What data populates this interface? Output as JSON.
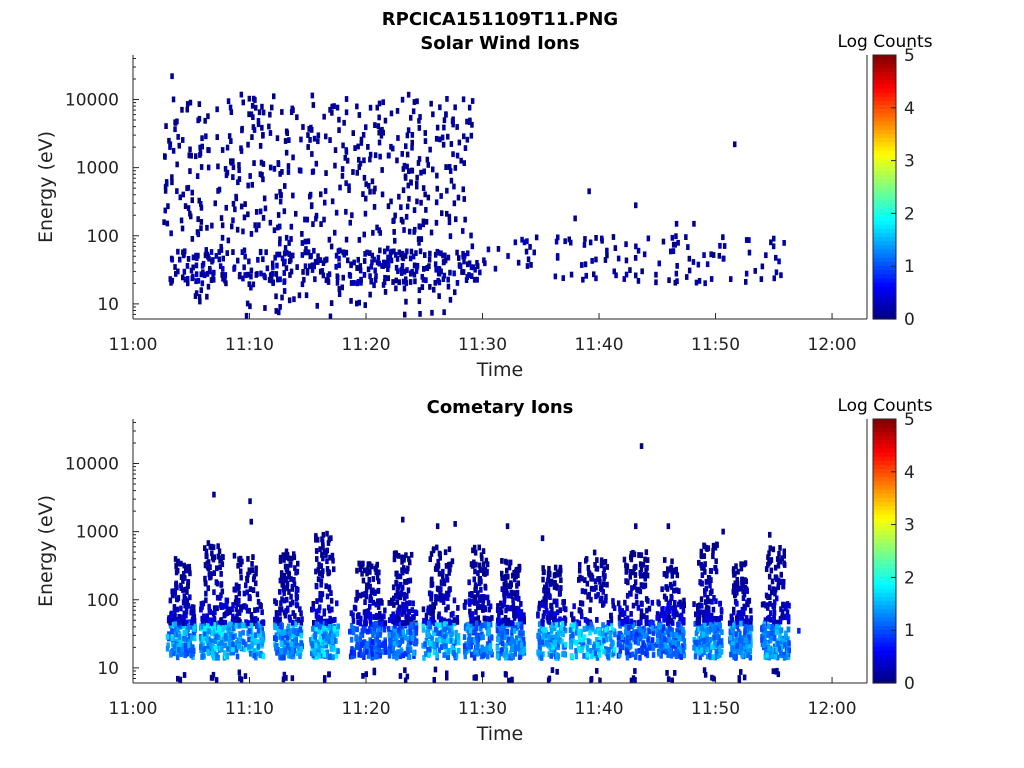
{
  "figure_title": "RPCICA151109T11.PNG",
  "colormap": [
    "#00007f",
    "#0000ff",
    "#007fff",
    "#00ffff",
    "#7fff7f",
    "#ffff00",
    "#ff7f00",
    "#ff0000",
    "#7f0000"
  ],
  "chart_data": [
    {
      "type": "heatmap",
      "title": "Solar Wind Ions",
      "xlabel": "Time",
      "ylabel": "Energy (eV)",
      "x_ticks": [
        "11:00",
        "11:10",
        "11:20",
        "11:30",
        "11:40",
        "11:50",
        "12:00"
      ],
      "x_range_minutes": [
        0,
        63
      ],
      "y_scale": "log",
      "y_ticks": [
        "10",
        "100",
        "1000",
        "10000"
      ],
      "y_range": [
        6,
        45000
      ],
      "colorbar": {
        "label": "Log Counts",
        "range": [
          0,
          5
        ],
        "ticks": [
          "0",
          "1",
          "2",
          "3",
          "4",
          "5"
        ]
      },
      "grid": false,
      "clusters": [
        {
          "t0": 2.5,
          "t1": 29.0,
          "e0": 150,
          "e1": 12000,
          "count": 420,
          "c0": 0.0,
          "c1": 0.2
        },
        {
          "t0": 2.5,
          "t1": 29.0,
          "e0": 60,
          "e1": 150,
          "count": 70,
          "c0": 0.0,
          "c1": 0.25
        },
        {
          "t0": 3.0,
          "t1": 29.5,
          "e0": 20,
          "e1": 60,
          "count": 330,
          "c0": 0.0,
          "c1": 0.35
        },
        {
          "t0": 3.0,
          "t1": 28.0,
          "e0": 6,
          "e1": 20,
          "count": 55,
          "c0": 0.0,
          "c1": 0.2
        },
        {
          "t0": 29.5,
          "t1": 56.0,
          "e0": 20,
          "e1": 100,
          "count": 120,
          "c0": 0.0,
          "c1": 0.3
        }
      ],
      "points": [
        {
          "t": 3.2,
          "e": 22000,
          "c": 0.1
        },
        {
          "t": 51.5,
          "e": 2200,
          "c": 0.1
        },
        {
          "t": 29.0,
          "e": 9500,
          "c": 0.1
        },
        {
          "t": 39.0,
          "e": 450,
          "c": 0.1
        },
        {
          "t": 43.0,
          "e": 280,
          "c": 0.1
        },
        {
          "t": 37.8,
          "e": 180,
          "c": 0.1
        },
        {
          "t": 46.5,
          "e": 150,
          "c": 0.1
        },
        {
          "t": 48.0,
          "e": 150,
          "c": 0.1
        }
      ]
    },
    {
      "type": "heatmap",
      "title": "Cometary Ions",
      "xlabel": "Time",
      "ylabel": "Energy (eV)",
      "x_ticks": [
        "11:00",
        "11:10",
        "11:20",
        "11:30",
        "11:40",
        "11:50",
        "12:00"
      ],
      "x_range_minutes": [
        0,
        63
      ],
      "y_scale": "log",
      "y_ticks": [
        "10",
        "100",
        "1000",
        "10000"
      ],
      "y_range": [
        6,
        45000
      ],
      "colorbar": {
        "label": "Log Counts",
        "range": [
          0,
          5
        ],
        "ticks": [
          "0",
          "1",
          "2",
          "3",
          "4",
          "5"
        ]
      },
      "grid": false,
      "bursts": [
        {
          "t": 4.0,
          "w": 2.0,
          "top": 400,
          "peak": 1.7
        },
        {
          "t": 6.8,
          "w": 2.0,
          "top": 700,
          "peak": 1.9
        },
        {
          "t": 9.5,
          "w": 2.6,
          "top": 450,
          "peak": 1.8
        },
        {
          "t": 13.2,
          "w": 2.0,
          "top": 550,
          "peak": 1.7
        },
        {
          "t": 16.3,
          "w": 2.0,
          "top": 1000,
          "peak": 1.9
        },
        {
          "t": 20.0,
          "w": 2.6,
          "top": 350,
          "peak": 1.3
        },
        {
          "t": 23.0,
          "w": 2.0,
          "top": 500,
          "peak": 1.5
        },
        {
          "t": 26.3,
          "w": 2.6,
          "top": 600,
          "peak": 1.8
        },
        {
          "t": 29.5,
          "w": 2.0,
          "top": 600,
          "peak": 1.6
        },
        {
          "t": 32.3,
          "w": 2.0,
          "top": 400,
          "peak": 1.6
        },
        {
          "t": 35.8,
          "w": 2.0,
          "top": 300,
          "peak": 1.8
        },
        {
          "t": 39.3,
          "w": 3.2,
          "top": 500,
          "peak": 1.9
        },
        {
          "t": 43.0,
          "w": 2.6,
          "top": 500,
          "peak": 1.4
        },
        {
          "t": 46.0,
          "w": 2.0,
          "top": 400,
          "peak": 1.5
        },
        {
          "t": 49.2,
          "w": 2.0,
          "top": 650,
          "peak": 1.7
        },
        {
          "t": 52.0,
          "w": 1.6,
          "top": 350,
          "peak": 1.6
        },
        {
          "t": 55.0,
          "w": 2.0,
          "top": 600,
          "peak": 1.7
        }
      ],
      "points": [
        {
          "t": 43.5,
          "e": 18000,
          "c": 0.1
        },
        {
          "t": 6.8,
          "e": 3500,
          "c": 0.1
        },
        {
          "t": 9.9,
          "e": 2800,
          "c": 0.1
        },
        {
          "t": 10.0,
          "e": 1400,
          "c": 0.1
        },
        {
          "t": 23.0,
          "e": 1500,
          "c": 0.1
        },
        {
          "t": 26.0,
          "e": 1200,
          "c": 0.1
        },
        {
          "t": 27.5,
          "e": 1300,
          "c": 0.1
        },
        {
          "t": 32.0,
          "e": 1200,
          "c": 0.1
        },
        {
          "t": 43.0,
          "e": 1200,
          "c": 0.1
        },
        {
          "t": 45.8,
          "e": 1200,
          "c": 0.1
        },
        {
          "t": 50.5,
          "e": 1000,
          "c": 0.1
        },
        {
          "t": 54.5,
          "e": 900,
          "c": 0.1
        },
        {
          "t": 35.0,
          "e": 800,
          "c": 0.1
        },
        {
          "t": 57.0,
          "e": 35,
          "c": 0.8
        }
      ]
    }
  ]
}
